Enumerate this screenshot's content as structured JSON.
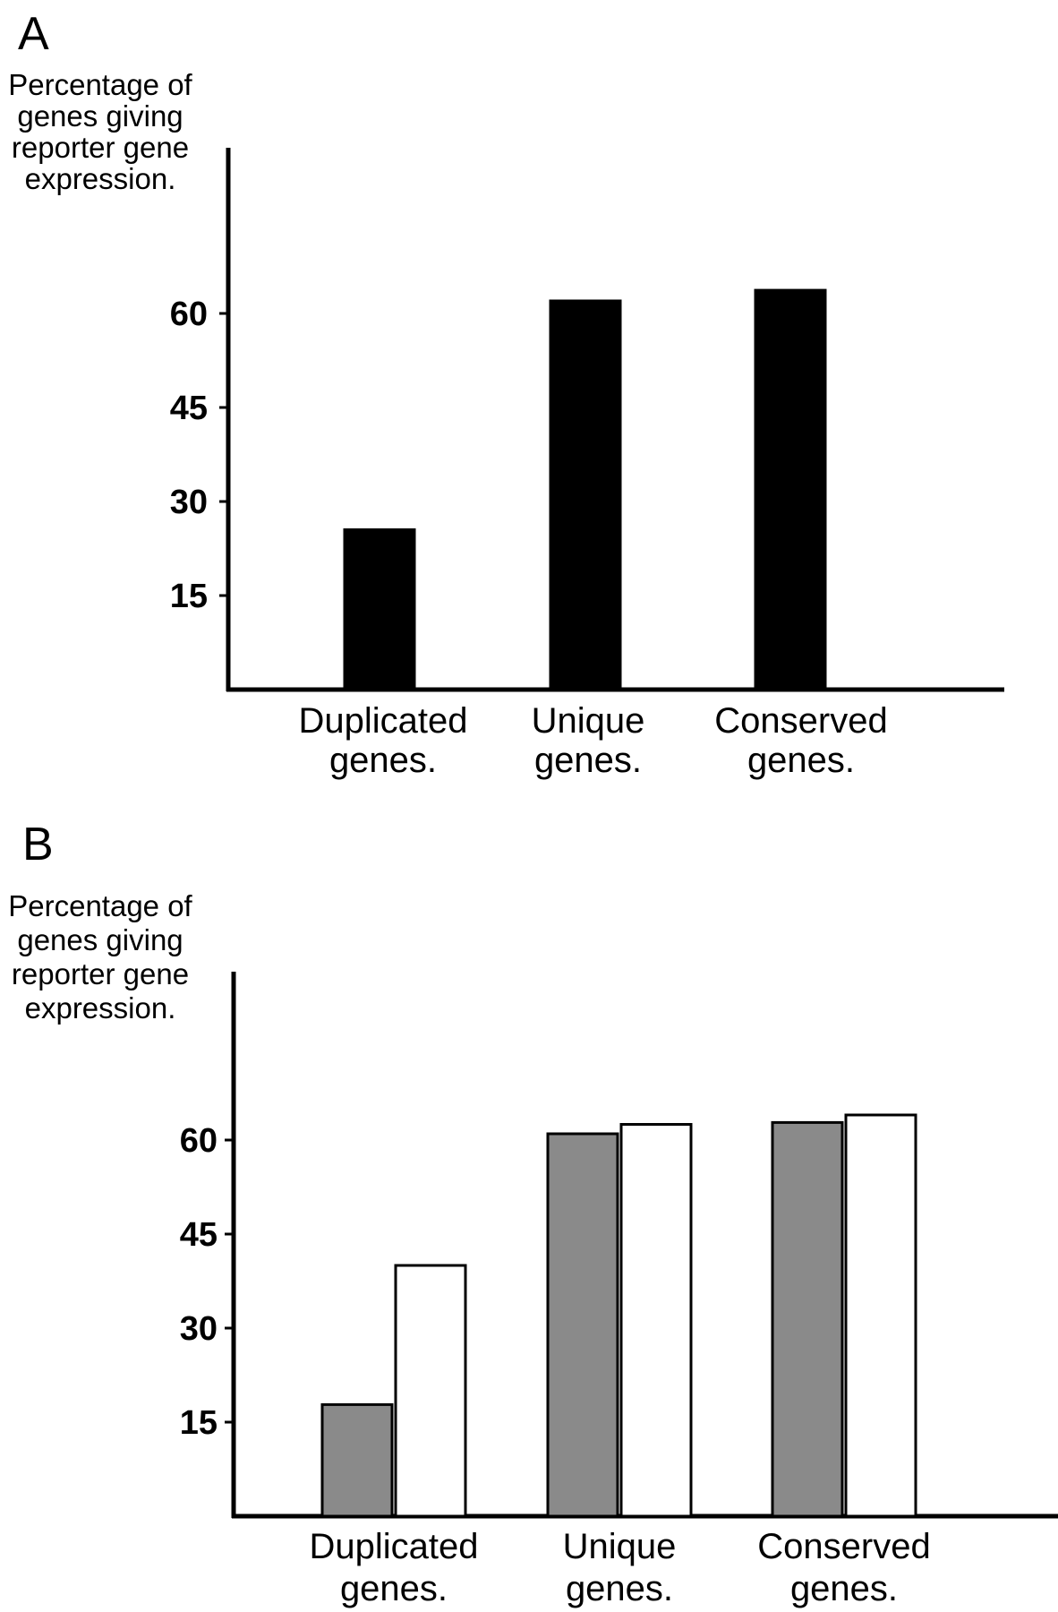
{
  "chart_data": [
    {
      "panel": "A",
      "type": "bar",
      "ylabel_lines": [
        "Percentage of",
        "genes giving",
        "reporter gene",
        "expression."
      ],
      "categories": [
        {
          "lines": [
            "Duplicated",
            "genes."
          ]
        },
        {
          "lines": [
            "Unique",
            "genes."
          ]
        },
        {
          "lines": [
            "Conserved",
            "genes."
          ]
        }
      ],
      "yticks": [
        15,
        30,
        45,
        60
      ],
      "ylim": [
        0,
        75
      ],
      "grid": false,
      "series": [
        {
          "values": [
            25.5,
            62,
            63.7
          ],
          "color": "#000000"
        }
      ]
    },
    {
      "panel": "B",
      "type": "bar",
      "ylabel_lines": [
        "Percentage of",
        "genes giving",
        "reporter gene",
        "expression."
      ],
      "categories": [
        {
          "lines": [
            "Duplicated",
            "genes."
          ]
        },
        {
          "lines": [
            "Unique",
            "genes."
          ]
        },
        {
          "lines": [
            "Conserved",
            "genes."
          ]
        }
      ],
      "yticks": [
        15,
        30,
        45,
        60
      ],
      "ylim": [
        0,
        75
      ],
      "grid": false,
      "series": [
        {
          "values": [
            17.8,
            61,
            62.8
          ],
          "color": "#8a8a8a"
        },
        {
          "values": [
            40,
            62.5,
            64
          ],
          "color": "#ffffff"
        }
      ]
    }
  ]
}
